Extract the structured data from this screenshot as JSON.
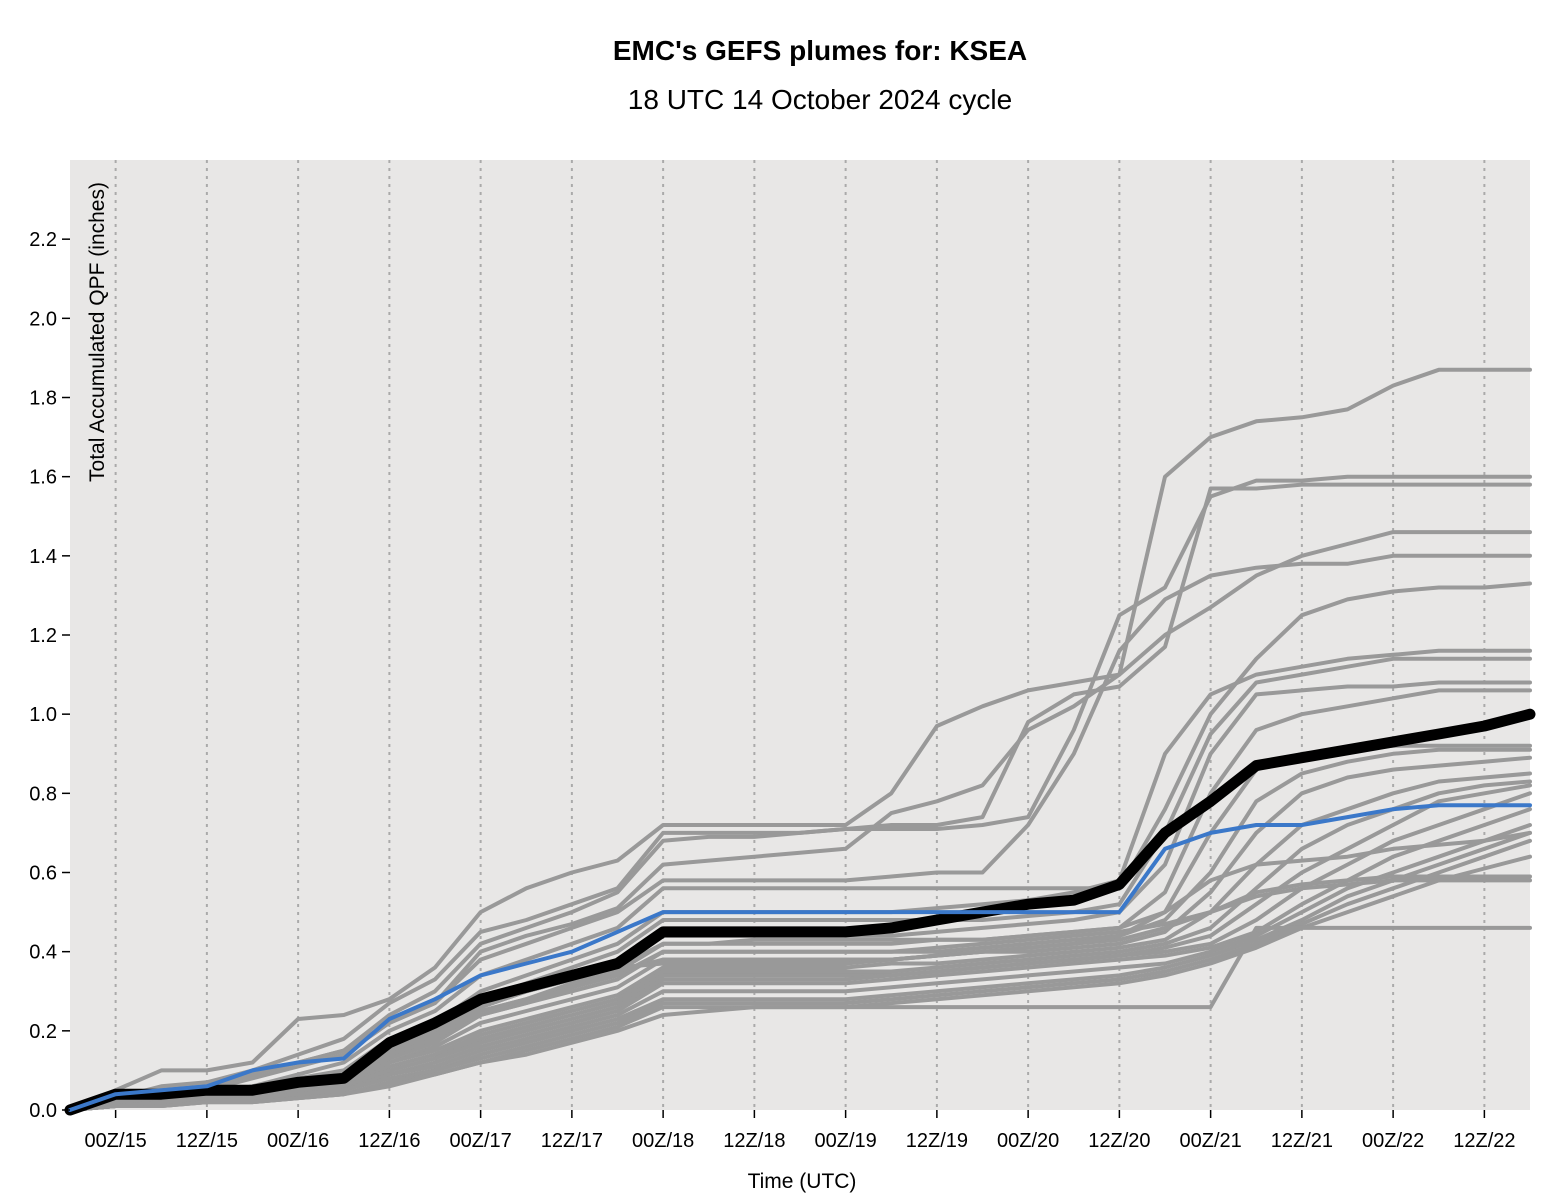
{
  "chart_data": {
    "type": "line",
    "title": "EMC's GEFS plumes for: KSEA",
    "subtitle": "18 UTC 14 October 2024 cycle",
    "xlabel": "Time (UTC)",
    "ylabel": "Total Accumulated QPF (inches)",
    "x_unit": "hours after 18Z 14 Oct 2024",
    "xlim": [
      0,
      192
    ],
    "ylim": [
      0,
      2.4
    ],
    "y_ticks": [
      0.0,
      0.2,
      0.4,
      0.6,
      0.8,
      1.0,
      1.2,
      1.4,
      1.6,
      1.8,
      2.0,
      2.2
    ],
    "x_ticks": [
      {
        "x": 6,
        "label": "00Z/15"
      },
      {
        "x": 18,
        "label": "12Z/15"
      },
      {
        "x": 30,
        "label": "00Z/16"
      },
      {
        "x": 42,
        "label": "12Z/16"
      },
      {
        "x": 54,
        "label": "00Z/17"
      },
      {
        "x": 66,
        "label": "12Z/17"
      },
      {
        "x": 78,
        "label": "00Z/18"
      },
      {
        "x": 90,
        "label": "12Z/18"
      },
      {
        "x": 102,
        "label": "00Z/19"
      },
      {
        "x": 114,
        "label": "12Z/19"
      },
      {
        "x": 126,
        "label": "00Z/20"
      },
      {
        "x": 138,
        "label": "12Z/20"
      },
      {
        "x": 150,
        "label": "00Z/21"
      },
      {
        "x": 162,
        "label": "12Z/21"
      },
      {
        "x": 174,
        "label": "00Z/22"
      },
      {
        "x": 186,
        "label": "12Z/22"
      }
    ],
    "grid": "vertical dotted at each tick",
    "colors": {
      "background": "#e8e7e6",
      "members": "#999999",
      "mean": "#000000",
      "control": "#3b78c9",
      "grid": "#aaaaaa"
    },
    "x": [
      0,
      6,
      12,
      18,
      24,
      30,
      36,
      42,
      48,
      54,
      60,
      66,
      72,
      78,
      84,
      90,
      96,
      102,
      108,
      114,
      120,
      126,
      132,
      138,
      144,
      150,
      156,
      162,
      168,
      174,
      180,
      186,
      192
    ],
    "series": [
      {
        "role": "mean",
        "values": [
          0.0,
          0.04,
          0.04,
          0.05,
          0.05,
          0.07,
          0.08,
          0.17,
          0.22,
          0.28,
          0.31,
          0.34,
          0.37,
          0.45,
          0.45,
          0.45,
          0.45,
          0.45,
          0.46,
          0.48,
          0.5,
          0.52,
          0.53,
          0.57,
          0.7,
          0.78,
          0.87,
          0.89,
          0.91,
          0.93,
          0.95,
          0.97,
          1.0
        ]
      },
      {
        "role": "control",
        "values": [
          0.0,
          0.04,
          0.05,
          0.06,
          0.1,
          0.12,
          0.13,
          0.23,
          0.28,
          0.34,
          0.37,
          0.4,
          0.45,
          0.5,
          0.5,
          0.5,
          0.5,
          0.5,
          0.5,
          0.5,
          0.5,
          0.5,
          0.5,
          0.5,
          0.66,
          0.7,
          0.72,
          0.72,
          0.74,
          0.76,
          0.77,
          0.77,
          0.77
        ]
      },
      {
        "role": "member",
        "values": [
          0.0,
          0.05,
          0.1,
          0.1,
          0.12,
          0.23,
          0.24,
          0.28,
          0.36,
          0.5,
          0.56,
          0.6,
          0.63,
          0.72,
          0.72,
          0.72,
          0.72,
          0.72,
          0.8,
          0.97,
          1.02,
          1.06,
          1.08,
          1.1,
          1.6,
          1.7,
          1.74,
          1.75,
          1.77,
          1.83,
          1.87,
          1.87,
          1.87
        ]
      },
      {
        "role": "member",
        "values": [
          0.0,
          0.03,
          0.06,
          0.07,
          0.1,
          0.14,
          0.18,
          0.27,
          0.33,
          0.45,
          0.48,
          0.52,
          0.56,
          0.7,
          0.7,
          0.7,
          0.7,
          0.71,
          0.71,
          0.71,
          0.72,
          0.74,
          0.96,
          1.25,
          1.32,
          1.55,
          1.59,
          1.59,
          1.6,
          1.6,
          1.6,
          1.6,
          1.6
        ]
      },
      {
        "role": "member",
        "values": [
          0.0,
          0.03,
          0.05,
          0.06,
          0.09,
          0.12,
          0.15,
          0.24,
          0.3,
          0.42,
          0.46,
          0.5,
          0.55,
          0.68,
          0.69,
          0.69,
          0.7,
          0.71,
          0.72,
          0.72,
          0.74,
          0.98,
          1.05,
          1.07,
          1.17,
          1.57,
          1.57,
          1.58,
          1.58,
          1.58,
          1.58,
          1.58,
          1.58
        ]
      },
      {
        "role": "member",
        "values": [
          0.0,
          0.02,
          0.04,
          0.05,
          0.08,
          0.11,
          0.14,
          0.22,
          0.27,
          0.4,
          0.44,
          0.47,
          0.51,
          0.62,
          0.63,
          0.64,
          0.65,
          0.66,
          0.75,
          0.78,
          0.82,
          0.96,
          1.02,
          1.1,
          1.2,
          1.27,
          1.35,
          1.4,
          1.43,
          1.46,
          1.46,
          1.46,
          1.46
        ]
      },
      {
        "role": "member",
        "values": [
          0.0,
          0.03,
          0.05,
          0.06,
          0.09,
          0.12,
          0.15,
          0.22,
          0.27,
          0.38,
          0.42,
          0.46,
          0.5,
          0.58,
          0.58,
          0.58,
          0.58,
          0.58,
          0.59,
          0.6,
          0.6,
          0.72,
          0.9,
          1.16,
          1.29,
          1.35,
          1.37,
          1.38,
          1.38,
          1.4,
          1.4,
          1.4,
          1.4
        ]
      },
      {
        "role": "member",
        "values": [
          0.0,
          0.02,
          0.03,
          0.04,
          0.06,
          0.09,
          0.12,
          0.2,
          0.25,
          0.34,
          0.38,
          0.42,
          0.46,
          0.56,
          0.56,
          0.56,
          0.56,
          0.56,
          0.56,
          0.56,
          0.56,
          0.56,
          0.56,
          0.56,
          0.76,
          1.0,
          1.14,
          1.25,
          1.29,
          1.31,
          1.32,
          1.32,
          1.33
        ]
      },
      {
        "role": "member",
        "values": [
          0.0,
          0.02,
          0.03,
          0.04,
          0.06,
          0.08,
          0.1,
          0.18,
          0.22,
          0.3,
          0.34,
          0.38,
          0.42,
          0.5,
          0.5,
          0.5,
          0.5,
          0.5,
          0.5,
          0.51,
          0.52,
          0.53,
          0.55,
          0.58,
          0.9,
          1.05,
          1.1,
          1.12,
          1.14,
          1.15,
          1.16,
          1.16,
          1.16
        ]
      },
      {
        "role": "member",
        "values": [
          0.0,
          0.02,
          0.03,
          0.04,
          0.05,
          0.07,
          0.09,
          0.16,
          0.2,
          0.28,
          0.32,
          0.36,
          0.4,
          0.48,
          0.48,
          0.48,
          0.48,
          0.48,
          0.48,
          0.48,
          0.48,
          0.49,
          0.5,
          0.52,
          0.7,
          0.95,
          1.08,
          1.1,
          1.12,
          1.14,
          1.14,
          1.14,
          1.14
        ]
      },
      {
        "role": "member",
        "values": [
          0.0,
          0.02,
          0.03,
          0.04,
          0.05,
          0.07,
          0.09,
          0.15,
          0.19,
          0.26,
          0.3,
          0.33,
          0.37,
          0.44,
          0.44,
          0.44,
          0.44,
          0.44,
          0.44,
          0.45,
          0.46,
          0.47,
          0.48,
          0.5,
          0.62,
          0.9,
          1.05,
          1.06,
          1.07,
          1.07,
          1.08,
          1.08,
          1.08
        ]
      },
      {
        "role": "member",
        "values": [
          0.0,
          0.02,
          0.03,
          0.03,
          0.05,
          0.06,
          0.08,
          0.14,
          0.18,
          0.25,
          0.28,
          0.31,
          0.35,
          0.42,
          0.42,
          0.42,
          0.42,
          0.42,
          0.42,
          0.43,
          0.43,
          0.44,
          0.45,
          0.46,
          0.55,
          0.8,
          0.96,
          1.0,
          1.02,
          1.04,
          1.06,
          1.06,
          1.06
        ]
      },
      {
        "role": "member",
        "values": [
          0.0,
          0.02,
          0.03,
          0.04,
          0.05,
          0.07,
          0.09,
          0.15,
          0.2,
          0.26,
          0.3,
          0.33,
          0.36,
          0.42,
          0.42,
          0.43,
          0.43,
          0.43,
          0.43,
          0.43,
          0.43,
          0.44,
          0.45,
          0.46,
          0.5,
          0.7,
          0.86,
          0.9,
          0.91,
          0.92,
          0.92,
          0.92,
          0.92
        ]
      },
      {
        "role": "member",
        "values": [
          0.0,
          0.01,
          0.02,
          0.03,
          0.04,
          0.06,
          0.08,
          0.14,
          0.18,
          0.24,
          0.27,
          0.3,
          0.33,
          0.4,
          0.4,
          0.4,
          0.4,
          0.4,
          0.4,
          0.4,
          0.41,
          0.42,
          0.43,
          0.44,
          0.48,
          0.6,
          0.78,
          0.85,
          0.88,
          0.9,
          0.91,
          0.91,
          0.91
        ]
      },
      {
        "role": "member",
        "values": [
          0.0,
          0.02,
          0.03,
          0.03,
          0.04,
          0.05,
          0.07,
          0.12,
          0.16,
          0.22,
          0.25,
          0.28,
          0.31,
          0.38,
          0.38,
          0.38,
          0.38,
          0.38,
          0.38,
          0.39,
          0.4,
          0.4,
          0.41,
          0.42,
          0.45,
          0.55,
          0.7,
          0.8,
          0.84,
          0.86,
          0.87,
          0.88,
          0.89
        ]
      },
      {
        "role": "member",
        "values": [
          0.0,
          0.01,
          0.02,
          0.03,
          0.04,
          0.05,
          0.07,
          0.12,
          0.15,
          0.2,
          0.23,
          0.26,
          0.29,
          0.36,
          0.36,
          0.36,
          0.36,
          0.36,
          0.37,
          0.37,
          0.38,
          0.39,
          0.4,
          0.41,
          0.43,
          0.5,
          0.62,
          0.72,
          0.76,
          0.8,
          0.83,
          0.84,
          0.85
        ]
      },
      {
        "role": "member",
        "values": [
          0.0,
          0.01,
          0.02,
          0.03,
          0.04,
          0.05,
          0.06,
          0.11,
          0.14,
          0.19,
          0.22,
          0.25,
          0.28,
          0.35,
          0.35,
          0.35,
          0.35,
          0.35,
          0.35,
          0.36,
          0.37,
          0.38,
          0.39,
          0.4,
          0.42,
          0.46,
          0.56,
          0.66,
          0.72,
          0.76,
          0.8,
          0.82,
          0.83
        ]
      },
      {
        "role": "member",
        "values": [
          0.0,
          0.01,
          0.02,
          0.02,
          0.03,
          0.05,
          0.06,
          0.1,
          0.13,
          0.18,
          0.21,
          0.24,
          0.27,
          0.34,
          0.34,
          0.34,
          0.34,
          0.34,
          0.34,
          0.35,
          0.36,
          0.37,
          0.38,
          0.39,
          0.41,
          0.44,
          0.52,
          0.6,
          0.66,
          0.72,
          0.78,
          0.8,
          0.82
        ]
      },
      {
        "role": "member",
        "values": [
          0.0,
          0.01,
          0.02,
          0.02,
          0.03,
          0.04,
          0.06,
          0.1,
          0.13,
          0.17,
          0.2,
          0.23,
          0.26,
          0.33,
          0.33,
          0.33,
          0.33,
          0.33,
          0.34,
          0.35,
          0.36,
          0.37,
          0.38,
          0.39,
          0.4,
          0.42,
          0.48,
          0.56,
          0.62,
          0.68,
          0.72,
          0.76,
          0.8
        ]
      },
      {
        "role": "member",
        "values": [
          0.0,
          0.01,
          0.02,
          0.02,
          0.03,
          0.04,
          0.05,
          0.09,
          0.12,
          0.16,
          0.19,
          0.22,
          0.25,
          0.32,
          0.32,
          0.32,
          0.32,
          0.32,
          0.33,
          0.34,
          0.35,
          0.36,
          0.37,
          0.38,
          0.39,
          0.41,
          0.45,
          0.52,
          0.58,
          0.64,
          0.68,
          0.72,
          0.76
        ]
      },
      {
        "role": "member",
        "values": [
          0.0,
          0.01,
          0.02,
          0.02,
          0.03,
          0.04,
          0.05,
          0.09,
          0.11,
          0.15,
          0.18,
          0.21,
          0.24,
          0.3,
          0.3,
          0.3,
          0.3,
          0.3,
          0.31,
          0.32,
          0.33,
          0.34,
          0.35,
          0.36,
          0.37,
          0.4,
          0.44,
          0.5,
          0.56,
          0.6,
          0.64,
          0.68,
          0.72
        ]
      },
      {
        "role": "member",
        "values": [
          0.0,
          0.01,
          0.02,
          0.02,
          0.03,
          0.04,
          0.05,
          0.08,
          0.1,
          0.14,
          0.17,
          0.2,
          0.23,
          0.28,
          0.28,
          0.28,
          0.28,
          0.28,
          0.29,
          0.3,
          0.31,
          0.32,
          0.33,
          0.34,
          0.36,
          0.39,
          0.43,
          0.48,
          0.54,
          0.58,
          0.62,
          0.66,
          0.7
        ]
      },
      {
        "role": "member",
        "values": [
          0.0,
          0.01,
          0.01,
          0.02,
          0.02,
          0.03,
          0.04,
          0.07,
          0.1,
          0.13,
          0.16,
          0.19,
          0.22,
          0.27,
          0.27,
          0.27,
          0.27,
          0.27,
          0.28,
          0.29,
          0.3,
          0.31,
          0.32,
          0.33,
          0.35,
          0.38,
          0.42,
          0.47,
          0.52,
          0.56,
          0.6,
          0.64,
          0.68
        ]
      },
      {
        "role": "member",
        "values": [
          0.0,
          0.01,
          0.01,
          0.02,
          0.02,
          0.03,
          0.04,
          0.07,
          0.09,
          0.12,
          0.15,
          0.18,
          0.21,
          0.26,
          0.26,
          0.26,
          0.26,
          0.26,
          0.27,
          0.28,
          0.29,
          0.3,
          0.31,
          0.32,
          0.34,
          0.37,
          0.41,
          0.46,
          0.5,
          0.54,
          0.58,
          0.61,
          0.64
        ]
      },
      {
        "role": "member",
        "values": [
          0.0,
          0.01,
          0.01,
          0.02,
          0.02,
          0.03,
          0.04,
          0.06,
          0.09,
          0.12,
          0.14,
          0.17,
          0.2,
          0.24,
          0.25,
          0.26,
          0.26,
          0.26,
          0.26,
          0.26,
          0.26,
          0.26,
          0.26,
          0.26,
          0.26,
          0.26,
          0.46,
          0.46,
          0.46,
          0.46,
          0.46,
          0.46,
          0.46
        ]
      },
      {
        "role": "member",
        "values": [
          0.0,
          0.01,
          0.02,
          0.03,
          0.04,
          0.06,
          0.08,
          0.13,
          0.17,
          0.24,
          0.27,
          0.31,
          0.34,
          0.4,
          0.4,
          0.4,
          0.4,
          0.4,
          0.4,
          0.41,
          0.42,
          0.43,
          0.44,
          0.45,
          0.47,
          0.5,
          0.54,
          0.56,
          0.57,
          0.58,
          0.58,
          0.58,
          0.58
        ]
      },
      {
        "role": "member",
        "values": [
          0.0,
          0.02,
          0.03,
          0.04,
          0.05,
          0.06,
          0.08,
          0.14,
          0.18,
          0.25,
          0.28,
          0.32,
          0.35,
          0.38,
          0.38,
          0.38,
          0.38,
          0.38,
          0.38,
          0.39,
          0.4,
          0.41,
          0.42,
          0.43,
          0.46,
          0.5,
          0.55,
          0.57,
          0.58,
          0.59,
          0.59,
          0.59,
          0.59
        ]
      },
      {
        "role": "member",
        "values": [
          0.0,
          0.02,
          0.03,
          0.04,
          0.05,
          0.07,
          0.09,
          0.15,
          0.19,
          0.26,
          0.3,
          0.33,
          0.36,
          0.37,
          0.37,
          0.37,
          0.37,
          0.37,
          0.38,
          0.39,
          0.4,
          0.41,
          0.42,
          0.44,
          0.5,
          0.58,
          0.62,
          0.63,
          0.64,
          0.66,
          0.67,
          0.68,
          0.7
        ]
      }
    ]
  }
}
